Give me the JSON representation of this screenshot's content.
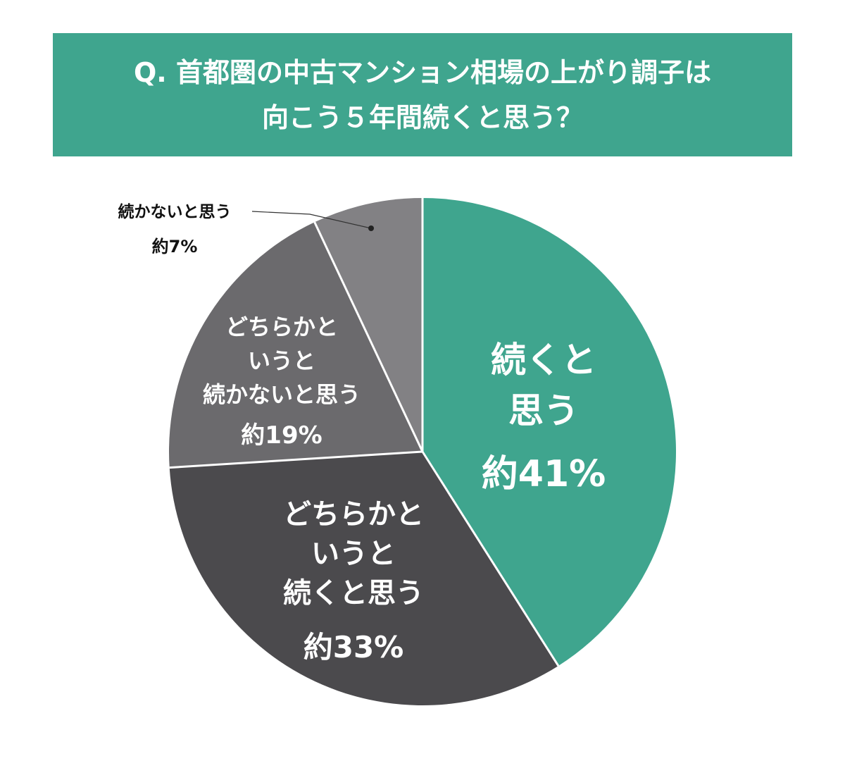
{
  "chart_data": {
    "type": "pie",
    "title": "Q. 首都圏の中古マンション相場の上がり調子は\n向こう５年間続くと思う？",
    "categories": [
      "続くと\n思う",
      "どちらかと\nいうと\n続くと思う",
      "どちらかと\nいうと\n続かないと思う",
      "続かないと思う"
    ],
    "values": [
      41,
      33,
      19,
      7
    ],
    "value_labels": [
      "約41%",
      "約33%",
      "約19%",
      "約7%"
    ],
    "colors": [
      "#3fa58e",
      "#4b4a4d",
      "#6b6a6d",
      "#828184"
    ],
    "title_color": "#3fa58e"
  }
}
